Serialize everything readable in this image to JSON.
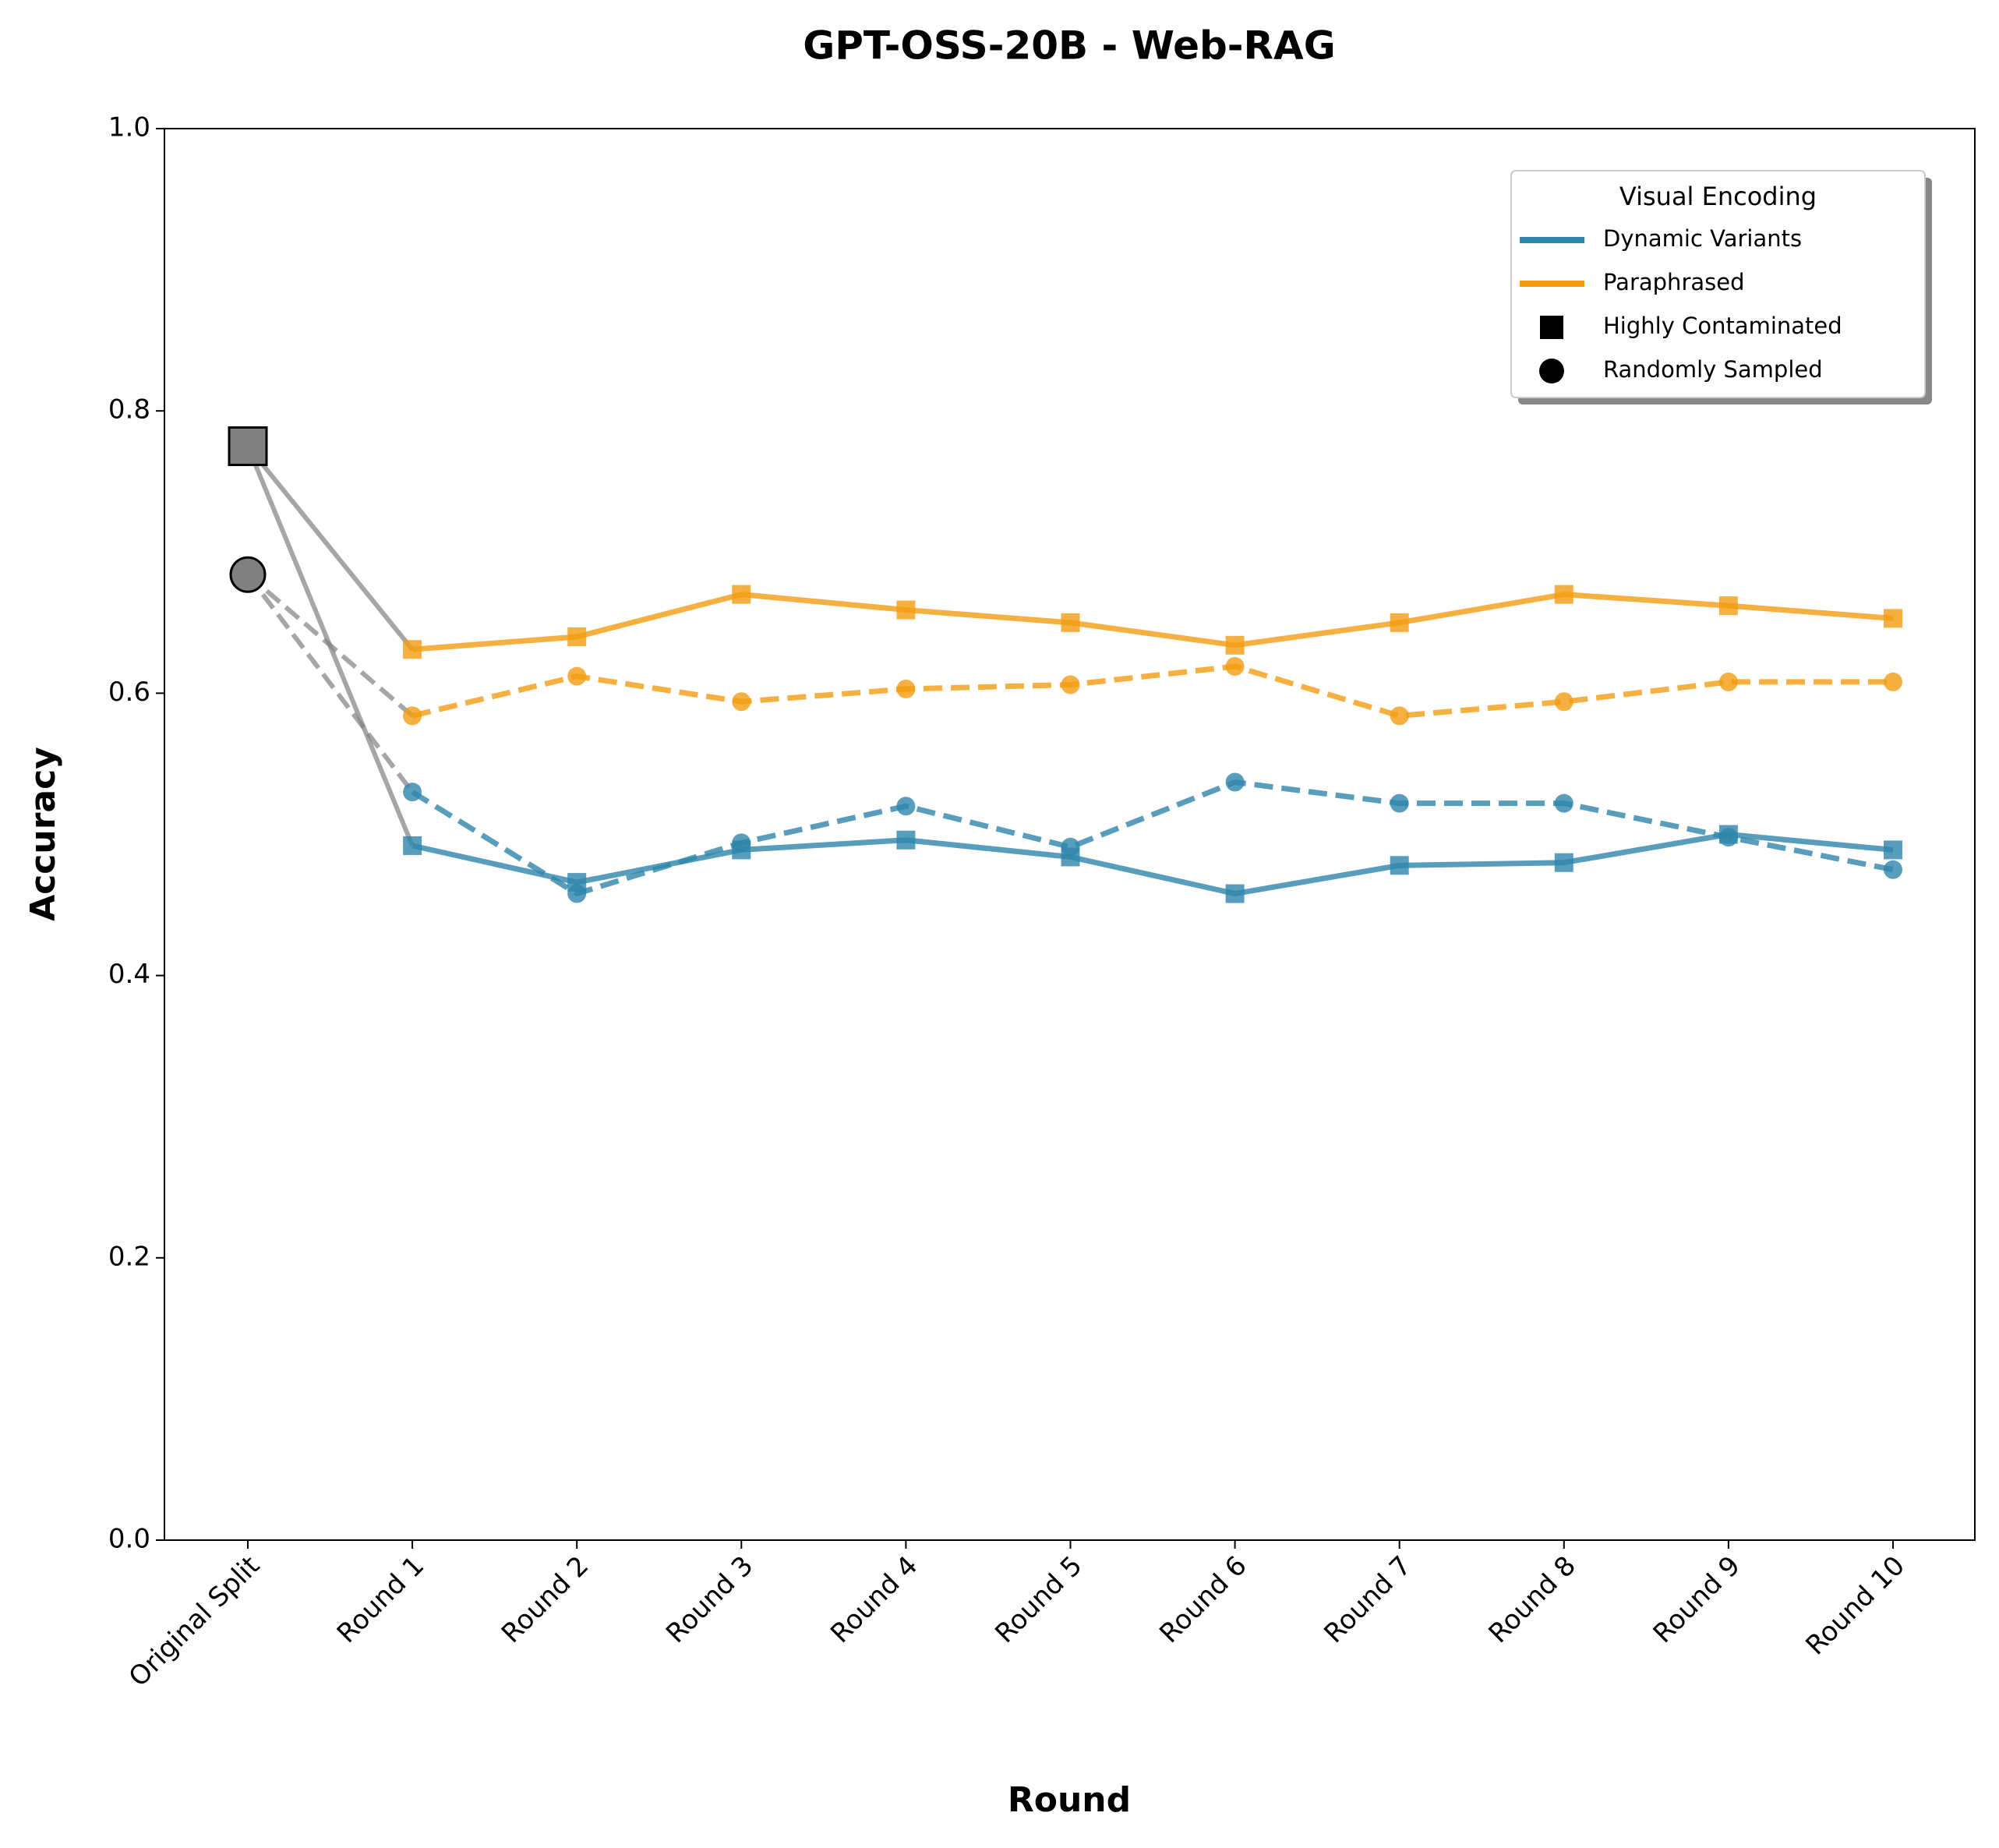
{
  "chart_data": {
    "type": "line",
    "title": "GPT-OSS-20B - Web-RAG",
    "x_label": "Round",
    "y_label": "Accuracy",
    "categories": [
      "Original Split",
      "Round 1",
      "Round 2",
      "Round 3",
      "Round 4",
      "Round 5",
      "Round 6",
      "Round 7",
      "Round 8",
      "Round 9",
      "Round 10"
    ],
    "ylim": [
      0,
      1
    ],
    "yticks": [
      {
        "value": 0,
        "label": "0.0"
      },
      0.2,
      0.4,
      0.6,
      0.8,
      {
        "value": 1,
        "label": "1.0"
      }
    ],
    "original": {
      "color": "#808080",
      "markers": [
        "square",
        "circle"
      ],
      "values": [
        0.775,
        0.684
      ]
    },
    "series": [
      {
        "color": "#f39c12",
        "style": "solid",
        "marker": "square",
        "values": [
          null,
          0.631,
          0.64,
          0.67,
          0.659,
          0.65,
          0.634,
          0.65,
          0.67,
          0.662,
          0.653
        ]
      },
      {
        "color": "#f39c12",
        "style": "dashed",
        "marker": "circle",
        "values": [
          null,
          0.584,
          0.612,
          0.594,
          0.603,
          0.606,
          0.619,
          0.584,
          0.594,
          0.608,
          0.608
        ]
      },
      {
        "color": "#2e86ab",
        "style": "solid",
        "marker": "square",
        "values": [
          null,
          0.492,
          0.466,
          0.489,
          0.496,
          0.484,
          0.458,
          0.478,
          0.48,
          0.5,
          0.489
        ]
      },
      {
        "color": "#2e86ab",
        "style": "dashed",
        "marker": "circle",
        "values": [
          null,
          0.53,
          0.458,
          0.494,
          0.52,
          0.491,
          0.537,
          0.522,
          0.522,
          0.498,
          0.475
        ]
      }
    ],
    "legend": {
      "title": "Visual Encoding",
      "position": "upper right",
      "entries": [
        {
          "label": "Dynamic Variants",
          "color": "#2e86ab"
        },
        {
          "label": "Paraphrased",
          "color": "#f39c12"
        },
        {
          "label": "Highly Contaminated",
          "marker": "square"
        },
        {
          "label": "Randomly Sampled",
          "marker": "circle"
        }
      ]
    }
  }
}
